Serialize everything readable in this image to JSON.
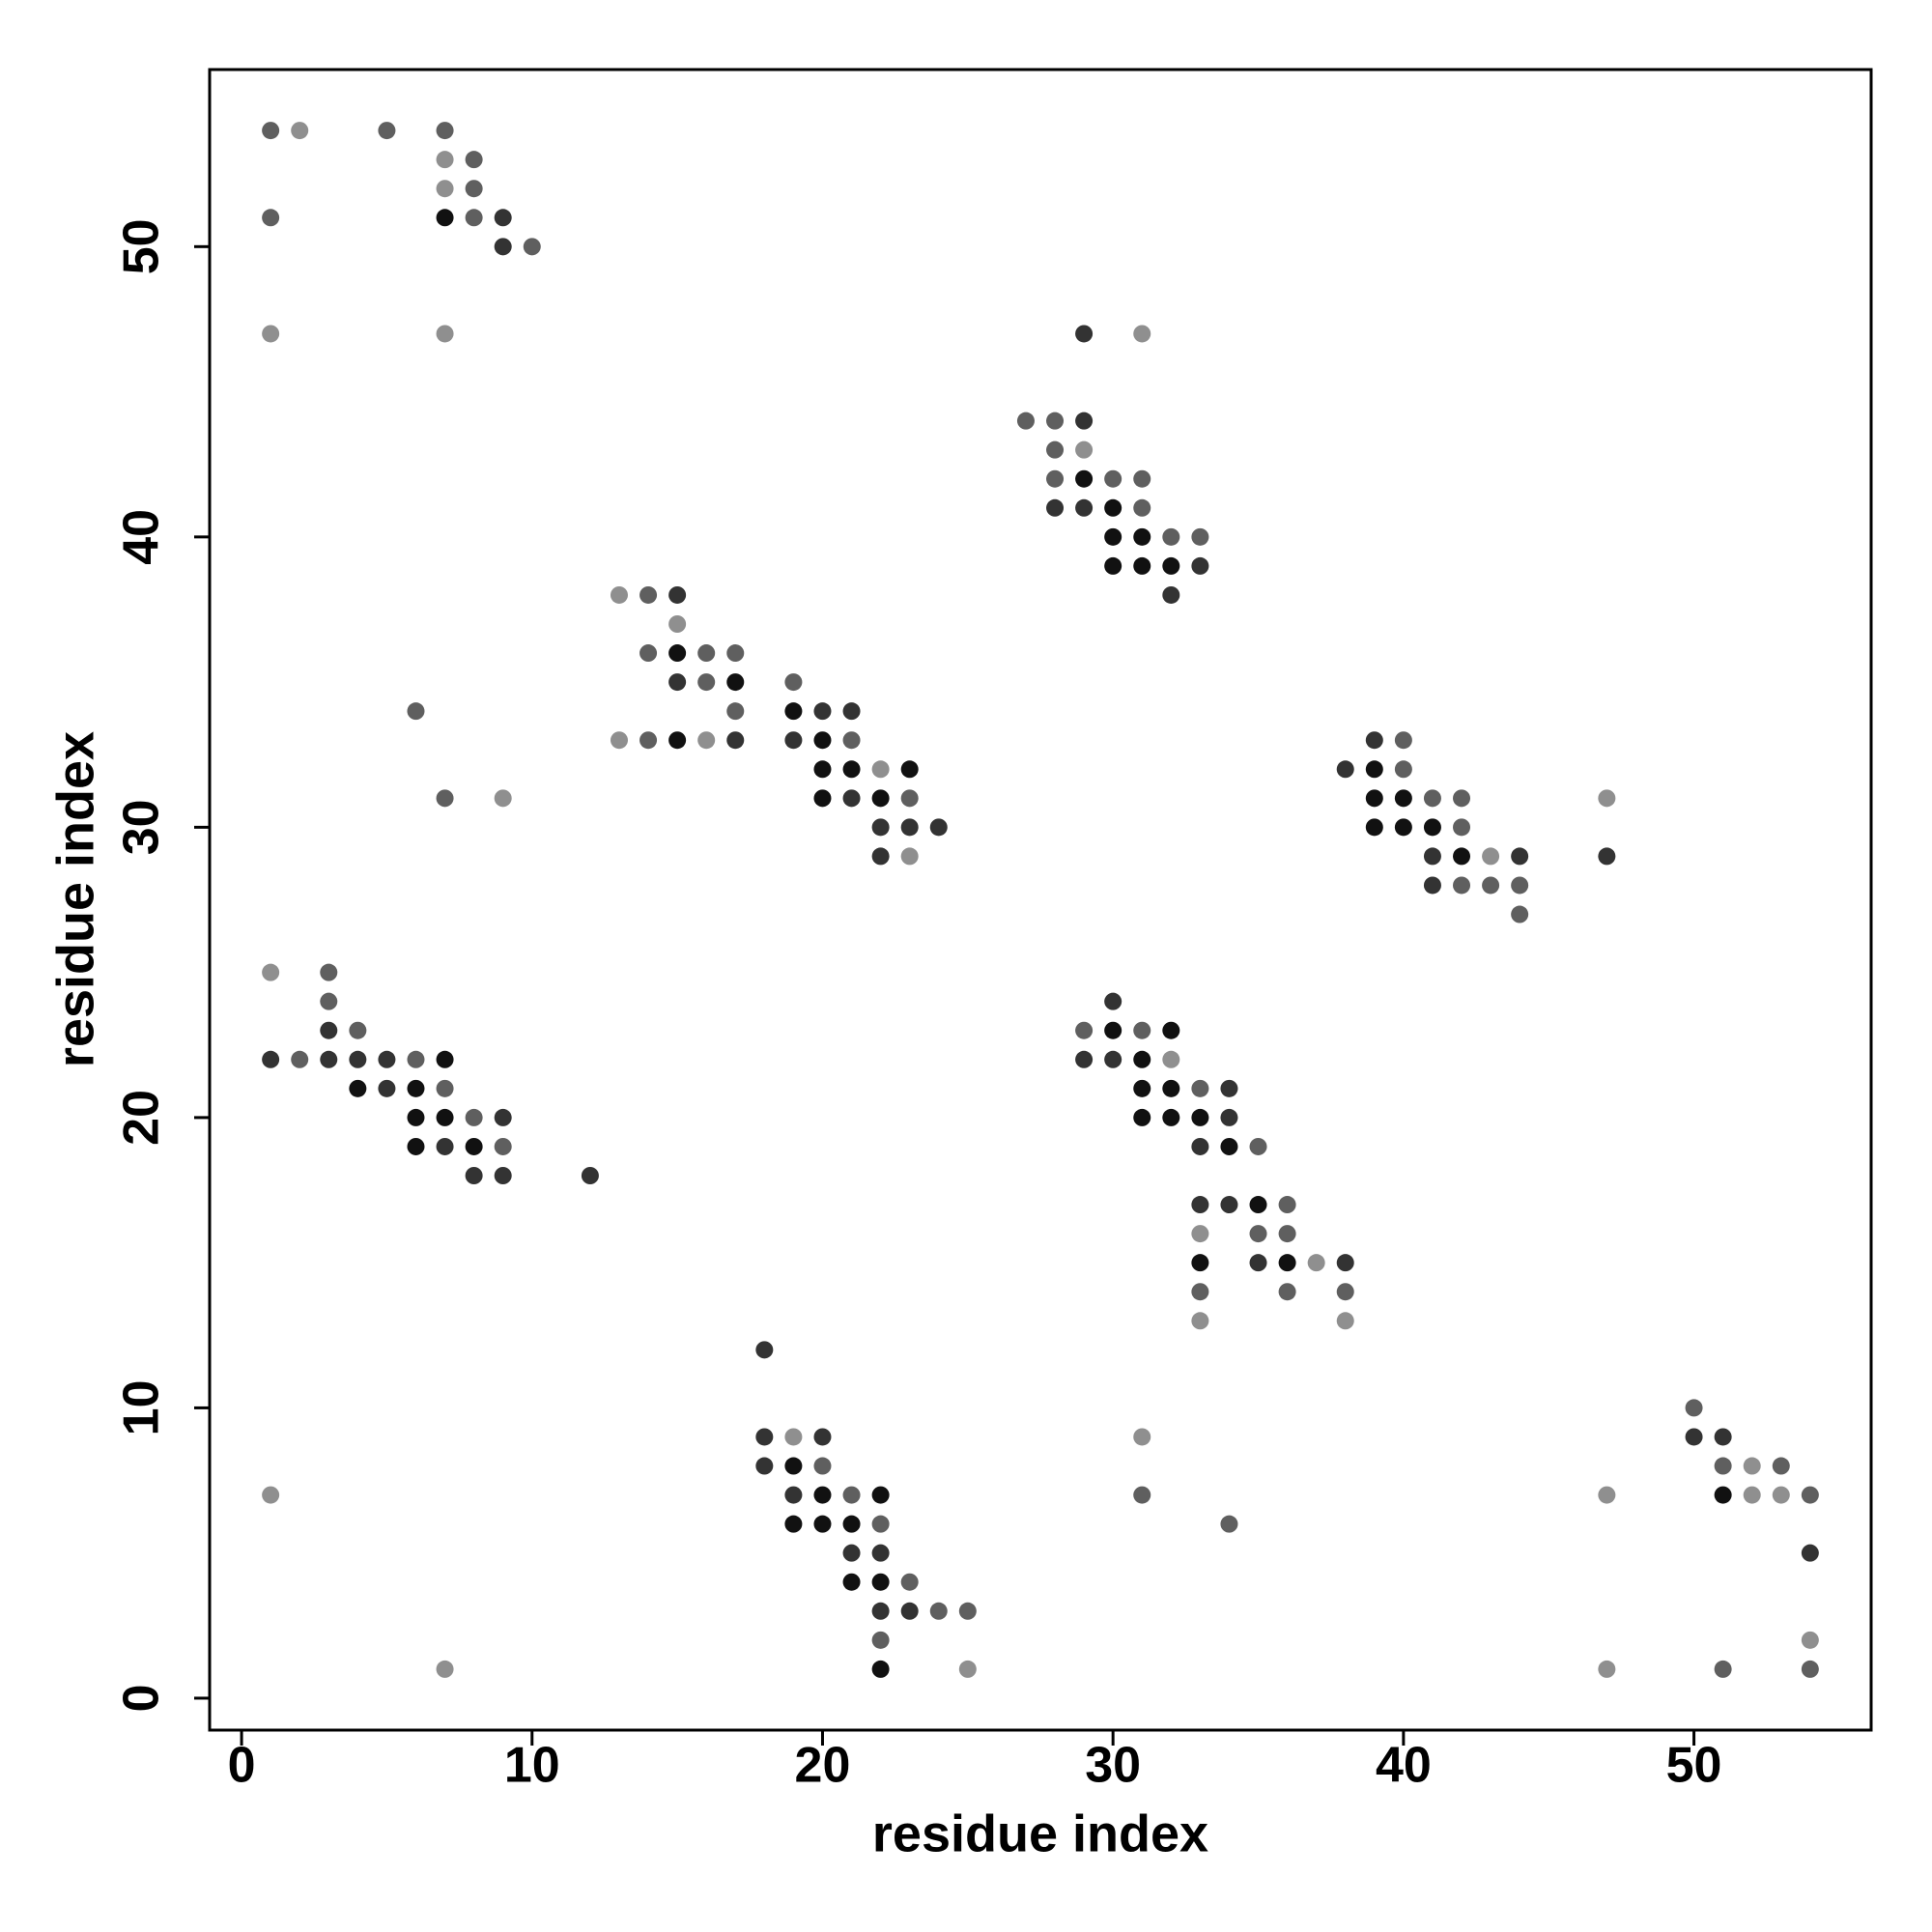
{
  "chart_data": {
    "type": "scatter",
    "x_label": "residue index",
    "y_label": "residue index",
    "xlim": [
      -1.1,
      56.1
    ],
    "ylim": [
      -1.1,
      56.1
    ],
    "xticks": [
      0,
      10,
      20,
      30,
      40,
      50
    ],
    "yticks": [
      0,
      10,
      20,
      30,
      40,
      50
    ],
    "x": [
      1,
      2,
      5,
      7,
      7,
      8,
      7,
      8,
      1,
      7,
      8,
      9,
      9,
      10,
      1,
      7,
      29,
      31,
      27,
      28,
      29,
      28,
      29,
      28,
      29,
      30,
      31,
      28,
      29,
      30,
      31,
      30,
      31,
      32,
      33,
      30,
      31,
      32,
      33,
      13,
      14,
      15,
      32,
      15,
      14,
      15,
      16,
      17,
      15,
      16,
      17,
      19,
      6,
      17,
      19,
      20,
      21,
      13,
      14,
      15,
      16,
      17,
      19,
      20,
      21,
      39,
      40,
      20,
      21,
      22,
      23,
      38,
      39,
      40,
      7,
      9,
      20,
      21,
      22,
      23,
      39,
      40,
      41,
      42,
      47,
      22,
      23,
      24,
      39,
      40,
      41,
      42,
      22,
      23,
      41,
      42,
      43,
      44,
      47,
      41,
      42,
      43,
      44,
      44,
      1,
      3,
      3,
      30,
      3,
      4,
      29,
      30,
      31,
      32,
      1,
      2,
      3,
      4,
      5,
      6,
      7,
      29,
      30,
      31,
      32,
      4,
      5,
      6,
      7,
      31,
      32,
      33,
      34,
      6,
      7,
      8,
      9,
      31,
      32,
      33,
      34,
      6,
      7,
      8,
      9,
      33,
      34,
      35,
      8,
      9,
      12,
      33,
      34,
      35,
      36,
      33,
      35,
      36,
      33,
      35,
      36,
      37,
      38,
      33,
      36,
      38,
      33,
      38,
      18,
      50,
      18,
      19,
      20,
      31,
      50,
      51,
      18,
      19,
      20,
      51,
      52,
      53,
      1,
      19,
      20,
      21,
      22,
      31,
      47,
      51,
      52,
      53,
      54,
      19,
      20,
      21,
      22,
      34,
      21,
      22,
      54,
      21,
      22,
      23,
      22,
      23,
      24,
      25,
      22,
      54,
      7,
      22,
      25,
      47,
      51,
      54
    ],
    "y": [
      54,
      54,
      54,
      54,
      53,
      53,
      52,
      52,
      51,
      51,
      51,
      51,
      50,
      50,
      47,
      47,
      47,
      47,
      44,
      44,
      44,
      43,
      43,
      42,
      42,
      42,
      42,
      41,
      41,
      41,
      41,
      40,
      40,
      40,
      40,
      39,
      39,
      39,
      39,
      38,
      38,
      38,
      38,
      37,
      36,
      36,
      36,
      36,
      35,
      35,
      35,
      35,
      34,
      34,
      34,
      34,
      34,
      33,
      33,
      33,
      33,
      33,
      33,
      33,
      33,
      33,
      33,
      32,
      32,
      32,
      32,
      32,
      32,
      32,
      31,
      31,
      31,
      31,
      31,
      31,
      31,
      31,
      31,
      31,
      31,
      30,
      30,
      30,
      30,
      30,
      30,
      30,
      29,
      29,
      29,
      29,
      29,
      29,
      29,
      28,
      28,
      28,
      28,
      27,
      25,
      25,
      24,
      24,
      23,
      23,
      23,
      23,
      23,
      23,
      22,
      22,
      22,
      22,
      22,
      22,
      22,
      22,
      22,
      22,
      22,
      21,
      21,
      21,
      21,
      21,
      21,
      21,
      21,
      20,
      20,
      20,
      20,
      20,
      20,
      20,
      20,
      19,
      19,
      19,
      19,
      19,
      19,
      19,
      18,
      18,
      18,
      17,
      17,
      17,
      17,
      16,
      16,
      16,
      15,
      15,
      15,
      15,
      15,
      14,
      14,
      14,
      13,
      13,
      12,
      10,
      9,
      9,
      9,
      9,
      9,
      9,
      8,
      8,
      8,
      8,
      8,
      8,
      7,
      7,
      7,
      7,
      7,
      7,
      7,
      7,
      7,
      7,
      7,
      6,
      6,
      6,
      6,
      6,
      5,
      5,
      5,
      4,
      4,
      4,
      3,
      3,
      3,
      3,
      2,
      2,
      1,
      1,
      1,
      1,
      1,
      1
    ],
    "colors": [
      "#5f5f5f",
      "#8f8f8f",
      "#5f5f5f",
      "#5f5f5f",
      "#8f8f8f",
      "#5f5f5f",
      "#8f8f8f",
      "#5f5f5f",
      "#5f5f5f",
      "#111111",
      "#5f5f5f",
      "#333333",
      "#333333",
      "#5f5f5f",
      "#8f8f8f",
      "#8f8f8f",
      "#333333",
      "#8f8f8f",
      "#5f5f5f",
      "#5f5f5f",
      "#333333",
      "#5f5f5f",
      "#8f8f8f",
      "#5f5f5f",
      "#111111",
      "#5f5f5f",
      "#5f5f5f",
      "#333333",
      "#333333",
      "#111111",
      "#5f5f5f",
      "#111111",
      "#111111",
      "#5f5f5f",
      "#5f5f5f",
      "#111111",
      "#111111",
      "#111111",
      "#333333",
      "#8f8f8f",
      "#5f5f5f",
      "#333333",
      "#333333",
      "#8f8f8f",
      "#5f5f5f",
      "#111111",
      "#5f5f5f",
      "#5f5f5f",
      "#333333",
      "#5f5f5f",
      "#111111",
      "#5f5f5f",
      "#5f5f5f",
      "#5f5f5f",
      "#111111",
      "#333333",
      "#333333",
      "#8f8f8f",
      "#5f5f5f",
      "#111111",
      "#8f8f8f",
      "#333333",
      "#333333",
      "#111111",
      "#5f5f5f",
      "#333333",
      "#5f5f5f",
      "#111111",
      "#111111",
      "#8f8f8f",
      "#111111",
      "#333333",
      "#111111",
      "#5f5f5f",
      "#5f5f5f",
      "#8f8f8f",
      "#111111",
      "#333333",
      "#111111",
      "#5f5f5f",
      "#111111",
      "#111111",
      "#5f5f5f",
      "#5f5f5f",
      "#8f8f8f",
      "#333333",
      "#333333",
      "#333333",
      "#111111",
      "#111111",
      "#111111",
      "#5f5f5f",
      "#333333",
      "#8f8f8f",
      "#333333",
      "#111111",
      "#8f8f8f",
      "#333333",
      "#333333",
      "#333333",
      "#5f5f5f",
      "#5f5f5f",
      "#5f5f5f",
      "#5f5f5f",
      "#8f8f8f",
      "#5f5f5f",
      "#5f5f5f",
      "#333333",
      "#333333",
      "#5f5f5f",
      "#5f5f5f",
      "#111111",
      "#5f5f5f",
      "#111111",
      "#333333",
      "#5f5f5f",
      "#333333",
      "#333333",
      "#333333",
      "#5f5f5f",
      "#111111",
      "#333333",
      "#333333",
      "#111111",
      "#8f8f8f",
      "#111111",
      "#333333",
      "#111111",
      "#5f5f5f",
      "#111111",
      "#111111",
      "#5f5f5f",
      "#333333",
      "#111111",
      "#111111",
      "#5f5f5f",
      "#333333",
      "#111111",
      "#111111",
      "#111111",
      "#333333",
      "#111111",
      "#333333",
      "#111111",
      "#5f5f5f",
      "#333333",
      "#111111",
      "#5f5f5f",
      "#333333",
      "#333333",
      "#333333",
      "#333333",
      "#333333",
      "#111111",
      "#5f5f5f",
      "#8f8f8f",
      "#5f5f5f",
      "#5f5f5f",
      "#111111",
      "#333333",
      "#111111",
      "#8f8f8f",
      "#333333",
      "#5f5f5f",
      "#5f5f5f",
      "#5f5f5f",
      "#8f8f8f",
      "#8f8f8f",
      "#333333",
      "#5f5f5f",
      "#333333",
      "#8f8f8f",
      "#333333",
      "#8f8f8f",
      "#333333",
      "#333333",
      "#333333",
      "#111111",
      "#5f5f5f",
      "#5f5f5f",
      "#8f8f8f",
      "#5f5f5f",
      "#8f8f8f",
      "#333333",
      "#111111",
      "#5f5f5f",
      "#111111",
      "#5f5f5f",
      "#8f8f8f",
      "#111111",
      "#8f8f8f",
      "#8f8f8f",
      "#5f5f5f",
      "#111111",
      "#111111",
      "#111111",
      "#5f5f5f",
      "#5f5f5f",
      "#333333",
      "#333333",
      "#333333",
      "#111111",
      "#111111",
      "#5f5f5f",
      "#333333",
      "#333333",
      "#5f5f5f",
      "#5f5f5f",
      "#5f5f5f",
      "#8f8f8f",
      "#8f8f8f",
      "#111111",
      "#8f8f8f",
      "#8f8f8f",
      "#5f5f5f",
      "#5f5f5f"
    ]
  }
}
